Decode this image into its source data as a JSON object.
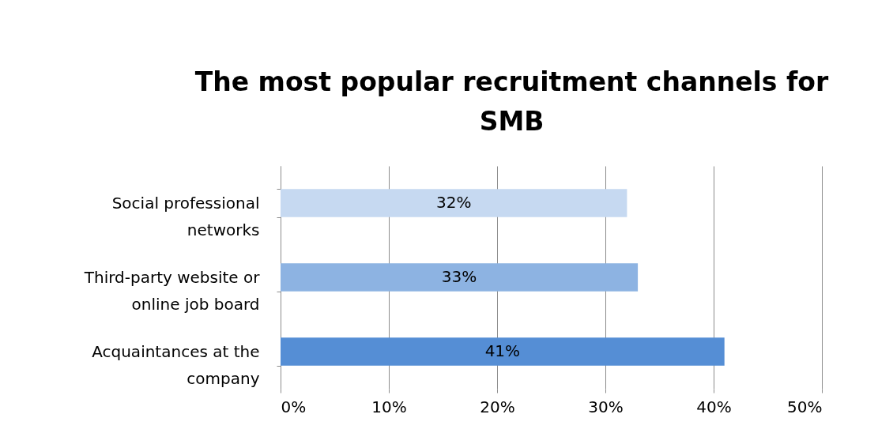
{
  "chart_data": {
    "type": "bar",
    "orientation": "horizontal",
    "title": "The most popular recruitment channels for SMB",
    "categories": [
      "Social professional networks",
      "Third-party website or online job board",
      "Acquaintances at the company"
    ],
    "values": [
      32,
      33,
      41
    ],
    "colors": [
      "#c6d9f1",
      "#8db3e2",
      "#558ed5"
    ],
    "value_labels": [
      "32%",
      "33%",
      "41%"
    ],
    "xlim": [
      0,
      50
    ],
    "xticks": [
      {
        "value": 0,
        "label": "0%"
      },
      {
        "value": 10,
        "label": "10%"
      },
      {
        "value": 20,
        "label": "20%"
      },
      {
        "value": 30,
        "label": "30%"
      },
      {
        "value": 40,
        "label": "40%"
      },
      {
        "value": 50,
        "label": "50%"
      }
    ],
    "grid": "x",
    "legend": false
  }
}
